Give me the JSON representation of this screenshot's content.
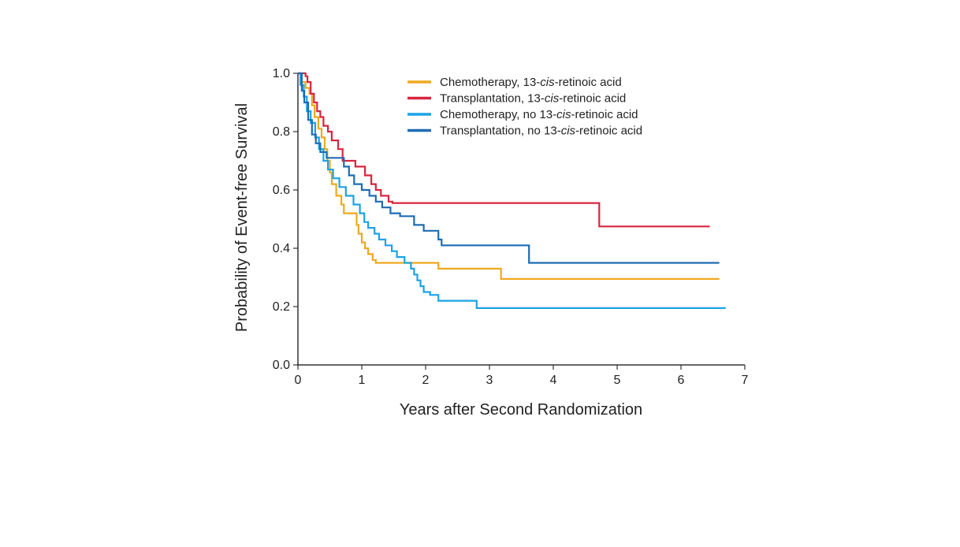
{
  "chart_data": {
    "type": "line",
    "step": true,
    "xlabel": "Years after Second Randomization",
    "ylabel": "Probability of Event-free Survival",
    "xlim": [
      0,
      7
    ],
    "ylim": [
      0,
      1
    ],
    "x_ticks": [
      "0",
      "1",
      "2",
      "3",
      "4",
      "5",
      "6",
      "7"
    ],
    "y_ticks": [
      "0.0",
      "0.2",
      "0.4",
      "0.6",
      "0.8",
      "1.0"
    ],
    "grid": false,
    "legend_position": "top-right",
    "series": [
      {
        "name": "Chemotherapy, 13-cis-retinoic acid",
        "legend": {
          "pre": "Chemotherapy, 13-",
          "ital": "cis",
          "post": "-retinoic acid"
        },
        "color": "#f0a81e",
        "points": [
          [
            0,
            1.0
          ],
          [
            0.05,
            0.97
          ],
          [
            0.12,
            0.95
          ],
          [
            0.18,
            0.93
          ],
          [
            0.22,
            0.89
          ],
          [
            0.26,
            0.85
          ],
          [
            0.32,
            0.81
          ],
          [
            0.37,
            0.78
          ],
          [
            0.42,
            0.74
          ],
          [
            0.46,
            0.7
          ],
          [
            0.5,
            0.66
          ],
          [
            0.53,
            0.62
          ],
          [
            0.6,
            0.58
          ],
          [
            0.68,
            0.55
          ],
          [
            0.72,
            0.52
          ],
          [
            0.92,
            0.48
          ],
          [
            0.95,
            0.45
          ],
          [
            1.0,
            0.42
          ],
          [
            1.05,
            0.4
          ],
          [
            1.1,
            0.38
          ],
          [
            1.17,
            0.36
          ],
          [
            1.22,
            0.35
          ],
          [
            2.2,
            0.33
          ],
          [
            3.18,
            0.295
          ],
          [
            6.6,
            0.295
          ]
        ]
      },
      {
        "name": "Transplantation, 13-cis-retinoic acid",
        "legend": {
          "pre": "Transplantation, 13-",
          "ital": "cis",
          "post": "-retinoic acid"
        },
        "color": "#d8253f",
        "points": [
          [
            0,
            1.0
          ],
          [
            0.12,
            0.99
          ],
          [
            0.15,
            0.97
          ],
          [
            0.2,
            0.93
          ],
          [
            0.25,
            0.9
          ],
          [
            0.3,
            0.87
          ],
          [
            0.35,
            0.85
          ],
          [
            0.4,
            0.82
          ],
          [
            0.47,
            0.8
          ],
          [
            0.53,
            0.77
          ],
          [
            0.63,
            0.74
          ],
          [
            0.7,
            0.7
          ],
          [
            0.9,
            0.68
          ],
          [
            1.05,
            0.65
          ],
          [
            1.15,
            0.62
          ],
          [
            1.22,
            0.6
          ],
          [
            1.3,
            0.58
          ],
          [
            1.42,
            0.56
          ],
          [
            1.48,
            0.555
          ],
          [
            4.72,
            0.475
          ],
          [
            6.45,
            0.475
          ]
        ]
      },
      {
        "name": "Chemotherapy, no 13-cis-retinoic acid",
        "legend": {
          "pre": "Chemotherapy, no 13-",
          "ital": "cis",
          "post": "-retinoic acid"
        },
        "color": "#1aa3e6",
        "points": [
          [
            0,
            1.0
          ],
          [
            0.04,
            0.96
          ],
          [
            0.09,
            0.92
          ],
          [
            0.14,
            0.87
          ],
          [
            0.2,
            0.83
          ],
          [
            0.27,
            0.78
          ],
          [
            0.33,
            0.74
          ],
          [
            0.4,
            0.7
          ],
          [
            0.47,
            0.67
          ],
          [
            0.55,
            0.64
          ],
          [
            0.65,
            0.61
          ],
          [
            0.75,
            0.58
          ],
          [
            0.87,
            0.55
          ],
          [
            0.97,
            0.52
          ],
          [
            1.04,
            0.49
          ],
          [
            1.1,
            0.47
          ],
          [
            1.2,
            0.45
          ],
          [
            1.27,
            0.43
          ],
          [
            1.37,
            0.41
          ],
          [
            1.47,
            0.39
          ],
          [
            1.55,
            0.37
          ],
          [
            1.67,
            0.35
          ],
          [
            1.77,
            0.33
          ],
          [
            1.82,
            0.31
          ],
          [
            1.87,
            0.29
          ],
          [
            1.92,
            0.27
          ],
          [
            1.97,
            0.25
          ],
          [
            2.07,
            0.24
          ],
          [
            2.2,
            0.22
          ],
          [
            2.8,
            0.195
          ],
          [
            6.7,
            0.195
          ]
        ]
      },
      {
        "name": "Transplantation, no 13-cis-retinoic acid",
        "legend": {
          "pre": "Transplantation, no 13-",
          "ital": "cis",
          "post": "-retinoic acid"
        },
        "color": "#1d6cb3",
        "points": [
          [
            0,
            1.0
          ],
          [
            0.06,
            0.94
          ],
          [
            0.1,
            0.9
          ],
          [
            0.16,
            0.84
          ],
          [
            0.22,
            0.79
          ],
          [
            0.28,
            0.76
          ],
          [
            0.35,
            0.73
          ],
          [
            0.45,
            0.71
          ],
          [
            0.72,
            0.68
          ],
          [
            0.8,
            0.65
          ],
          [
            0.88,
            0.62
          ],
          [
            1.0,
            0.6
          ],
          [
            1.12,
            0.58
          ],
          [
            1.22,
            0.56
          ],
          [
            1.32,
            0.54
          ],
          [
            1.45,
            0.52
          ],
          [
            1.6,
            0.51
          ],
          [
            1.82,
            0.48
          ],
          [
            1.97,
            0.46
          ],
          [
            2.2,
            0.43
          ],
          [
            2.25,
            0.41
          ],
          [
            3.62,
            0.35
          ],
          [
            6.6,
            0.35
          ]
        ]
      }
    ]
  }
}
